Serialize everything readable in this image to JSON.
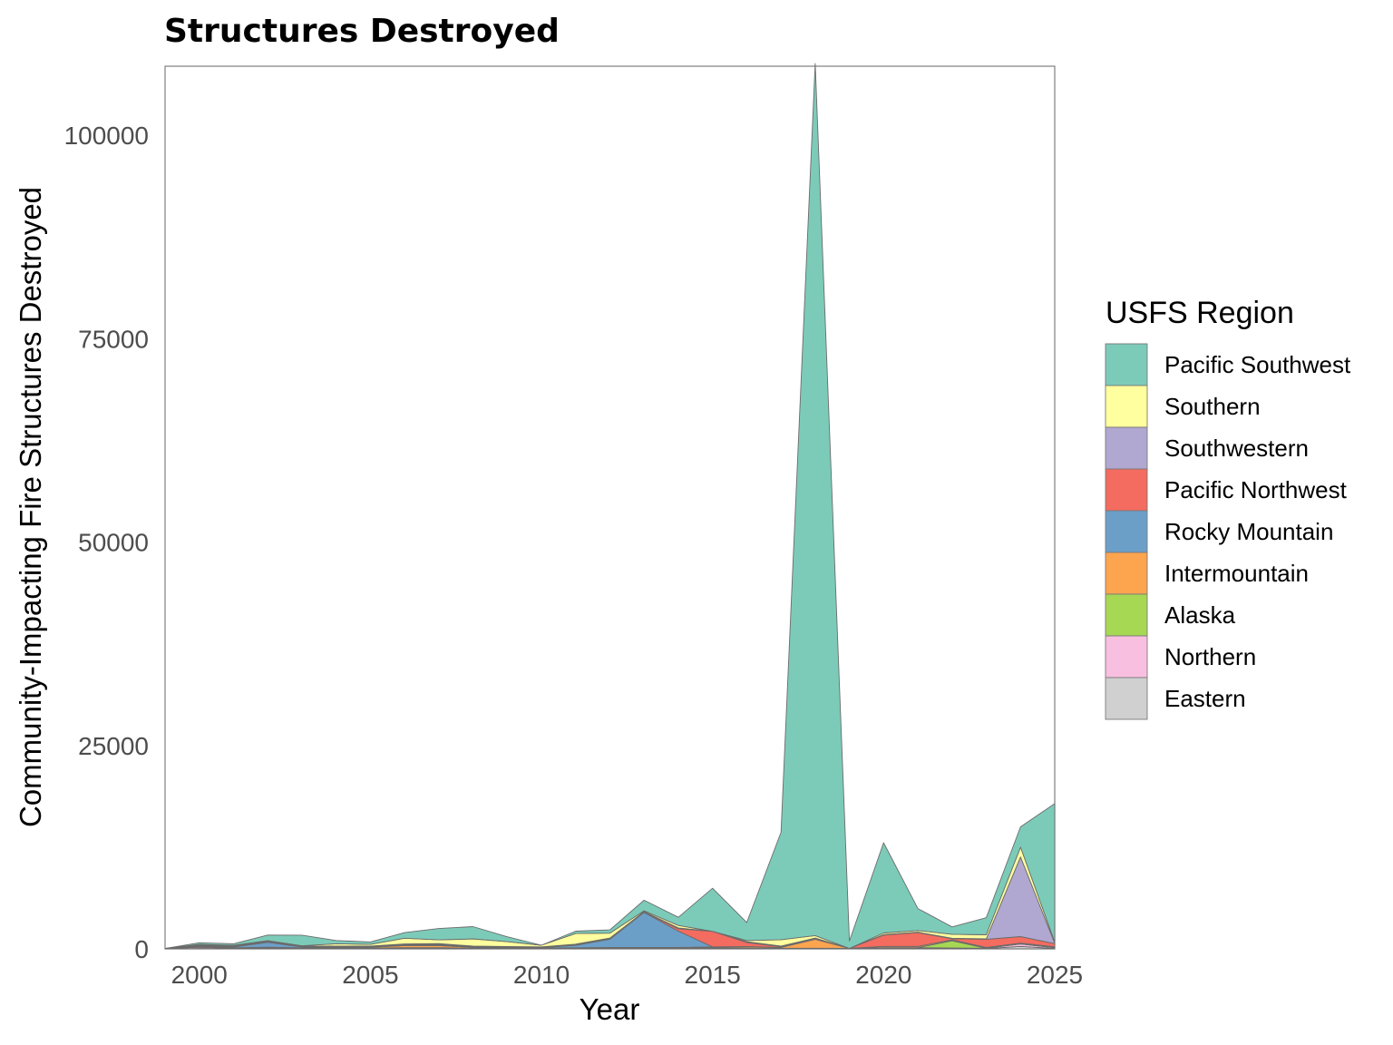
{
  "chart_data": {
    "type": "area",
    "stacked": true,
    "title": "Structures Destroyed",
    "xlabel": "Year",
    "ylabel": "Community-Impacting Fire Structures Destroyed",
    "xlim": [
      1999,
      2025
    ],
    "ylim": [
      0,
      108500
    ],
    "x_ticks": [
      2000,
      2005,
      2010,
      2015,
      2020,
      2025
    ],
    "y_ticks": [
      0,
      25000,
      50000,
      75000,
      100000
    ],
    "grid": false,
    "legend": {
      "title": "USFS Region",
      "position": "right"
    },
    "x": [
      1999,
      2000,
      2001,
      2002,
      2003,
      2004,
      2005,
      2006,
      2007,
      2008,
      2009,
      2010,
      2011,
      2012,
      2013,
      2014,
      2015,
      2016,
      2017,
      2018,
      2019,
      2020,
      2021,
      2022,
      2023,
      2024,
      2025
    ],
    "series": [
      {
        "name": "Eastern",
        "color": "#d0d0d0",
        "values": [
          0,
          50,
          30,
          50,
          30,
          30,
          50,
          50,
          50,
          30,
          30,
          20,
          30,
          30,
          30,
          30,
          50,
          30,
          30,
          30,
          30,
          50,
          50,
          50,
          30,
          300,
          50
        ]
      },
      {
        "name": "Northern",
        "color": "#f8bfe0",
        "values": [
          50,
          150,
          50,
          100,
          50,
          50,
          50,
          100,
          100,
          50,
          50,
          30,
          50,
          50,
          50,
          50,
          100,
          50,
          50,
          50,
          30,
          100,
          100,
          50,
          50,
          300,
          100
        ]
      },
      {
        "name": "Alaska",
        "color": "#a6d854",
        "values": [
          0,
          0,
          0,
          0,
          0,
          0,
          0,
          0,
          0,
          0,
          0,
          0,
          0,
          0,
          0,
          0,
          0,
          0,
          0,
          0,
          0,
          0,
          0,
          900,
          0,
          0,
          0
        ]
      },
      {
        "name": "Intermountain",
        "color": "#fda44f",
        "values": [
          0,
          50,
          50,
          50,
          50,
          100,
          100,
          250,
          250,
          100,
          50,
          50,
          50,
          100,
          100,
          100,
          100,
          150,
          100,
          1100,
          0,
          150,
          150,
          100,
          100,
          100,
          100
        ]
      },
      {
        "name": "Rocky Mountain",
        "color": "#6c9fc8",
        "values": [
          0,
          100,
          100,
          600,
          100,
          50,
          50,
          100,
          100,
          50,
          50,
          50,
          300,
          1000,
          4300,
          2000,
          0,
          50,
          0,
          0,
          0,
          0,
          0,
          0,
          0,
          0,
          0
        ]
      },
      {
        "name": "Pacific Northwest",
        "color": "#f46b5f",
        "values": [
          0,
          50,
          50,
          50,
          50,
          50,
          50,
          50,
          50,
          50,
          50,
          50,
          50,
          50,
          50,
          300,
          1900,
          500,
          100,
          100,
          0,
          1400,
          1700,
          150,
          1000,
          800,
          400
        ]
      },
      {
        "name": "Southwestern",
        "color": "#b0a8d0",
        "values": [
          0,
          100,
          100,
          100,
          50,
          50,
          50,
          50,
          100,
          50,
          50,
          50,
          100,
          100,
          50,
          100,
          0,
          100,
          50,
          50,
          0,
          50,
          50,
          50,
          50,
          9800,
          50
        ]
      },
      {
        "name": "Southern",
        "color": "#ffff9f",
        "values": [
          0,
          50,
          50,
          50,
          50,
          300,
          200,
          700,
          450,
          900,
          600,
          200,
          1300,
          600,
          100,
          300,
          0,
          150,
          800,
          300,
          0,
          200,
          200,
          500,
          500,
          1200,
          150
        ]
      },
      {
        "name": "Pacific Southwest",
        "color": "#7ccbb9",
        "values": [
          0,
          200,
          200,
          700,
          1300,
          400,
          300,
          700,
          1400,
          1500,
          600,
          0,
          300,
          400,
          1300,
          1000,
          5300,
          2200,
          13200,
          107200,
          900,
          11100,
          2700,
          900,
          2100,
          2500,
          17000
        ]
      }
    ]
  }
}
